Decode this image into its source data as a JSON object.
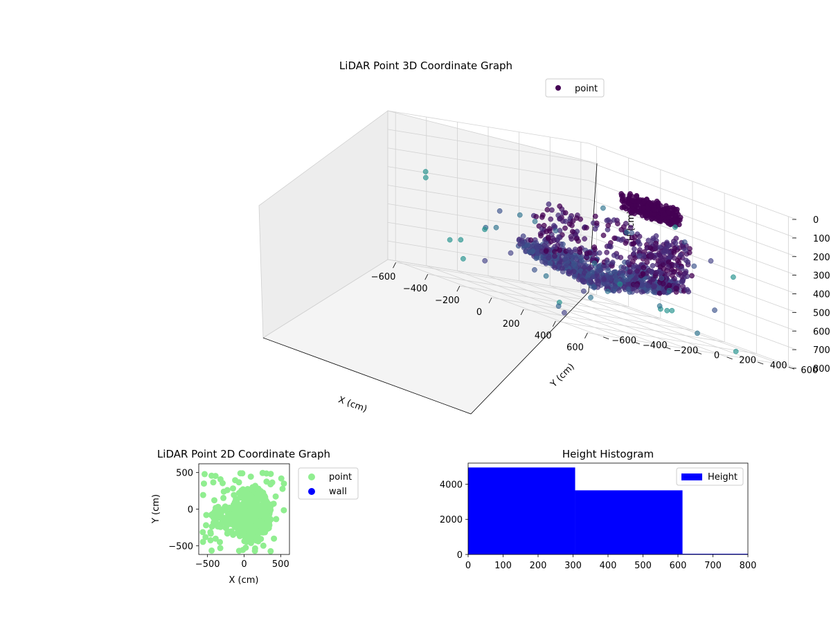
{
  "chart_data": [
    {
      "type": "scatter",
      "title": "LiDAR Point 3D Coordinate Graph",
      "xlabel": "X (cm)",
      "ylabel": "Y (cm)",
      "zlabel": "H (cm)",
      "xlim": [
        -650,
        650
      ],
      "ylim": [
        -650,
        650
      ],
      "zlim": [
        800,
        0
      ],
      "xticks": [
        "−600",
        "−400",
        "−200",
        "0",
        "200",
        "400",
        "600"
      ],
      "yticks": [
        "−600",
        "−400",
        "−200",
        "0",
        "200",
        "400",
        "600"
      ],
      "zticks": [
        "0",
        "100",
        "200",
        "300",
        "400",
        "500",
        "600",
        "700",
        "800"
      ],
      "grid": true,
      "legend": {
        "position": "top-right",
        "entries": [
          {
            "label": "point",
            "color": "#440154"
          }
        ]
      },
      "colormap": "viridis",
      "series": [
        {
          "name": "point",
          "note_clusters": [
            {
              "shape": "ceiling",
              "x": [
                -150,
                150
              ],
              "y": [
                300,
                550
              ],
              "h": [
                150,
                250
              ]
            },
            {
              "shape": "walls",
              "x": [
                -300,
                400
              ],
              "y": [
                -300,
                450
              ],
              "h": [
                250,
                600
              ]
            },
            {
              "shape": "floor",
              "x": [
                -350,
                400
              ],
              "y": [
                -350,
                400
              ],
              "h": [
                500,
                700
              ]
            }
          ]
        }
      ]
    },
    {
      "type": "scatter",
      "title": "LiDAR Point 2D Coordinate Graph",
      "xlabel": "X (cm)",
      "ylabel": "Y (cm)",
      "xlim": [
        -620,
        620
      ],
      "ylim": [
        -620,
        620
      ],
      "xticks": [
        "−500",
        "0",
        "500"
      ],
      "yticks": [
        "−500",
        "0",
        "500"
      ],
      "legend": {
        "position": "outside-right",
        "entries": [
          {
            "label": "point",
            "color": "#90ee90"
          },
          {
            "label": "wall",
            "color": "#0000ff"
          }
        ]
      },
      "series": [
        {
          "name": "point",
          "color": "#90ee90",
          "cluster": {
            "x": [
              -450,
              500
            ],
            "y": [
              -450,
              480
            ]
          }
        },
        {
          "name": "wall",
          "color": "#0000ff",
          "points": []
        }
      ]
    },
    {
      "type": "bar",
      "title": "Height Histogram",
      "xlim": [
        0,
        800
      ],
      "ylim": [
        0,
        5200
      ],
      "xticks": [
        "0",
        "100",
        "200",
        "300",
        "400",
        "500",
        "600",
        "700",
        "800"
      ],
      "yticks": [
        "0",
        "2000",
        "4000"
      ],
      "legend": {
        "position": "top-right",
        "entries": [
          {
            "label": "Height",
            "color": "#0000ff"
          }
        ]
      },
      "bins": [
        {
          "x0": 0,
          "x1": 306,
          "count": 4950
        },
        {
          "x0": 306,
          "x1": 613,
          "count": 3650
        },
        {
          "x0": 613,
          "x1": 800,
          "count": 40
        }
      ],
      "color": "#0000ff"
    }
  ]
}
